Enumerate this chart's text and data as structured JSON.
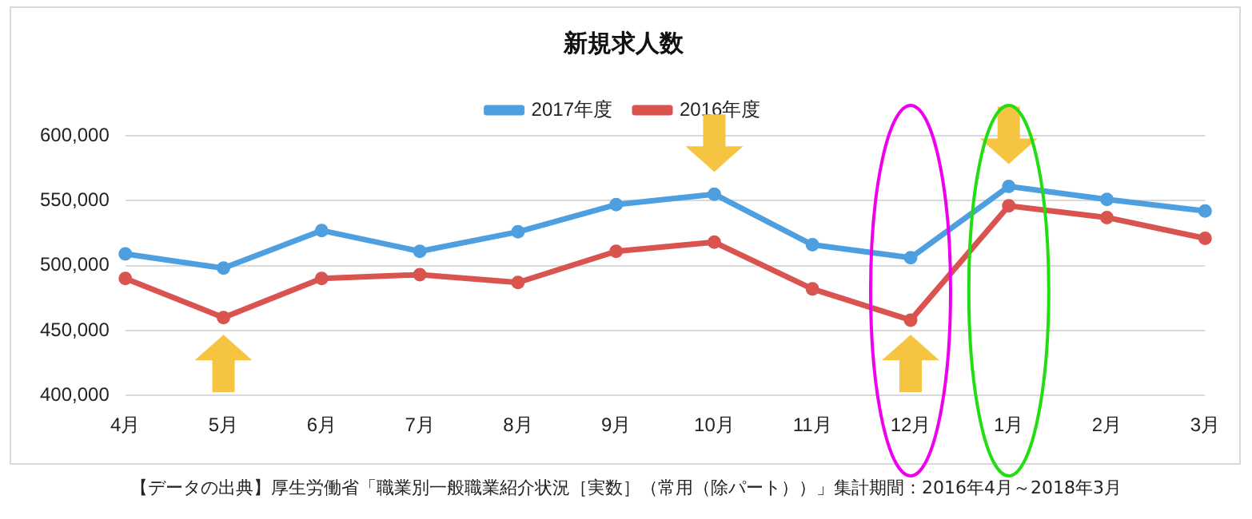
{
  "chart_data": {
    "type": "line",
    "title": "新規求人数",
    "categories": [
      "4月",
      "5月",
      "6月",
      "7月",
      "8月",
      "9月",
      "10月",
      "11月",
      "12月",
      "1月",
      "2月",
      "3月"
    ],
    "series": [
      {
        "name": "2017年度",
        "color": "#4e9fdf",
        "values": [
          509000,
          498000,
          527000,
          511000,
          526000,
          547000,
          555000,
          516000,
          506000,
          561000,
          551000,
          542000
        ]
      },
      {
        "name": "2016年度",
        "color": "#d9534f",
        "values": [
          490000,
          460000,
          490000,
          493000,
          487000,
          511000,
          518000,
          482000,
          458000,
          546000,
          537000,
          521000
        ]
      }
    ],
    "ylim": [
      400000,
      600000
    ],
    "yticks": [
      {
        "value": 400000,
        "label": "400,000"
      },
      {
        "value": 450000,
        "label": "450,000"
      },
      {
        "value": 500000,
        "label": "500,000"
      },
      {
        "value": 550000,
        "label": "550,000"
      },
      {
        "value": 600000,
        "label": "600,000"
      }
    ],
    "grid": "y",
    "legend": "top",
    "marker": "circle",
    "line_style": "solid",
    "annotations": [
      "【データの出典】厚生労働省「職業別一般職業紹介状況［実数］（常用（除パート））」集計期間：2016年4月～2018年3月"
    ]
  }
}
